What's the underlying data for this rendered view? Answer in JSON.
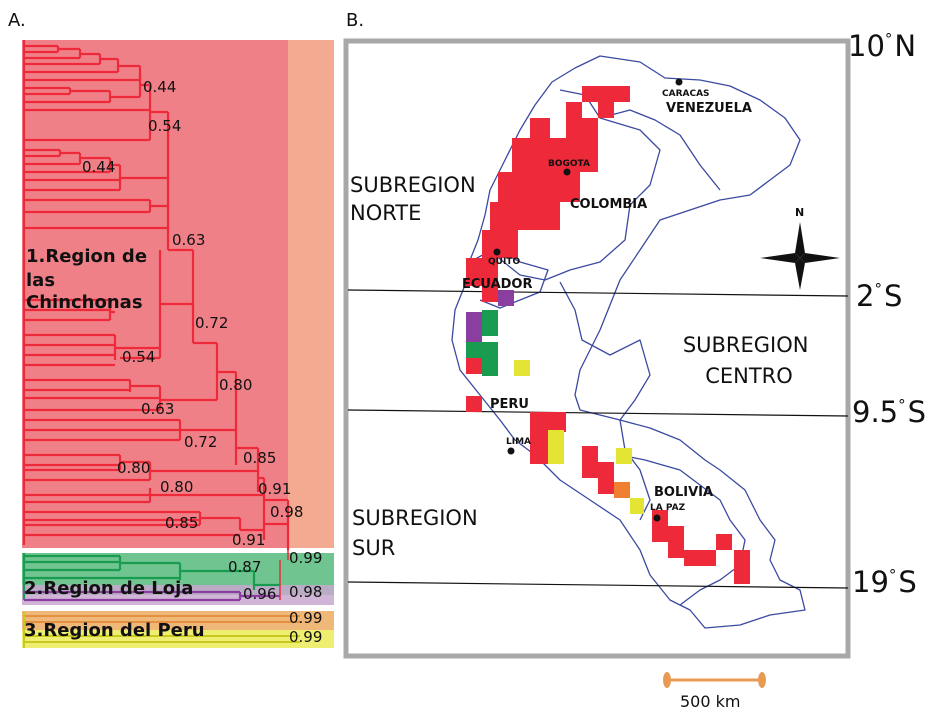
{
  "panels": {
    "a": "A.",
    "b": "B."
  },
  "dendrogram": {
    "regions": {
      "r1": [
        "1.Region de",
        "las",
        "Chinchonas"
      ],
      "r2": "2.Region de Loja",
      "r3": "3.Region del Peru"
    },
    "support": {
      "s1": "0.44",
      "s2": "0.54",
      "s3": "0.44",
      "s4": "0.63",
      "s5": "0.72",
      "s6": "0.54",
      "s7": "0.80",
      "s8": "0.63",
      "s9": "0.72",
      "s10": "0.85",
      "s11": "0.80",
      "s12": "0.80",
      "s13": "0.91",
      "s14": "0.85",
      "s15": "0.91",
      "s16": "0.98",
      "s17": "0.99",
      "s18": "0.87",
      "s19": "0.96",
      "s20": "0.98",
      "s21": "0.99",
      "s22": "0.99"
    },
    "colors": {
      "chinchonas": "#ef2b3a",
      "loja": "#1a9c50",
      "purple": "#8a3fa0",
      "peru_yellow": "#e4e435",
      "peru_orange": "#f0a060"
    }
  },
  "map": {
    "subregions": {
      "norte": [
        "SUBREGION",
        "NORTE"
      ],
      "centro": [
        "SUBREGION",
        "CENTRO"
      ],
      "sur": [
        "SUBREGION",
        "SUR"
      ]
    },
    "countries": {
      "venezuela": "VENEZUELA",
      "colombia": "COLOMBIA",
      "ecuador": "ECUADOR",
      "peru": "PERU",
      "bolivia": "BOLIVIA"
    },
    "cities": {
      "caracas": "CARACAS",
      "bogota": "BOGOTA",
      "quito": "QUITO",
      "lima": "LIMA",
      "lapaz": "LA PAZ"
    },
    "latitudes": {
      "l10n": {
        "num": "10",
        "dir": "N"
      },
      "l2s": {
        "num": "2",
        "dir": "S"
      },
      "l95s": {
        "num": "9.5",
        "dir": "S"
      },
      "l19s": {
        "num": "19",
        "dir": "S"
      }
    },
    "compass": "N",
    "scale": "500 km"
  }
}
